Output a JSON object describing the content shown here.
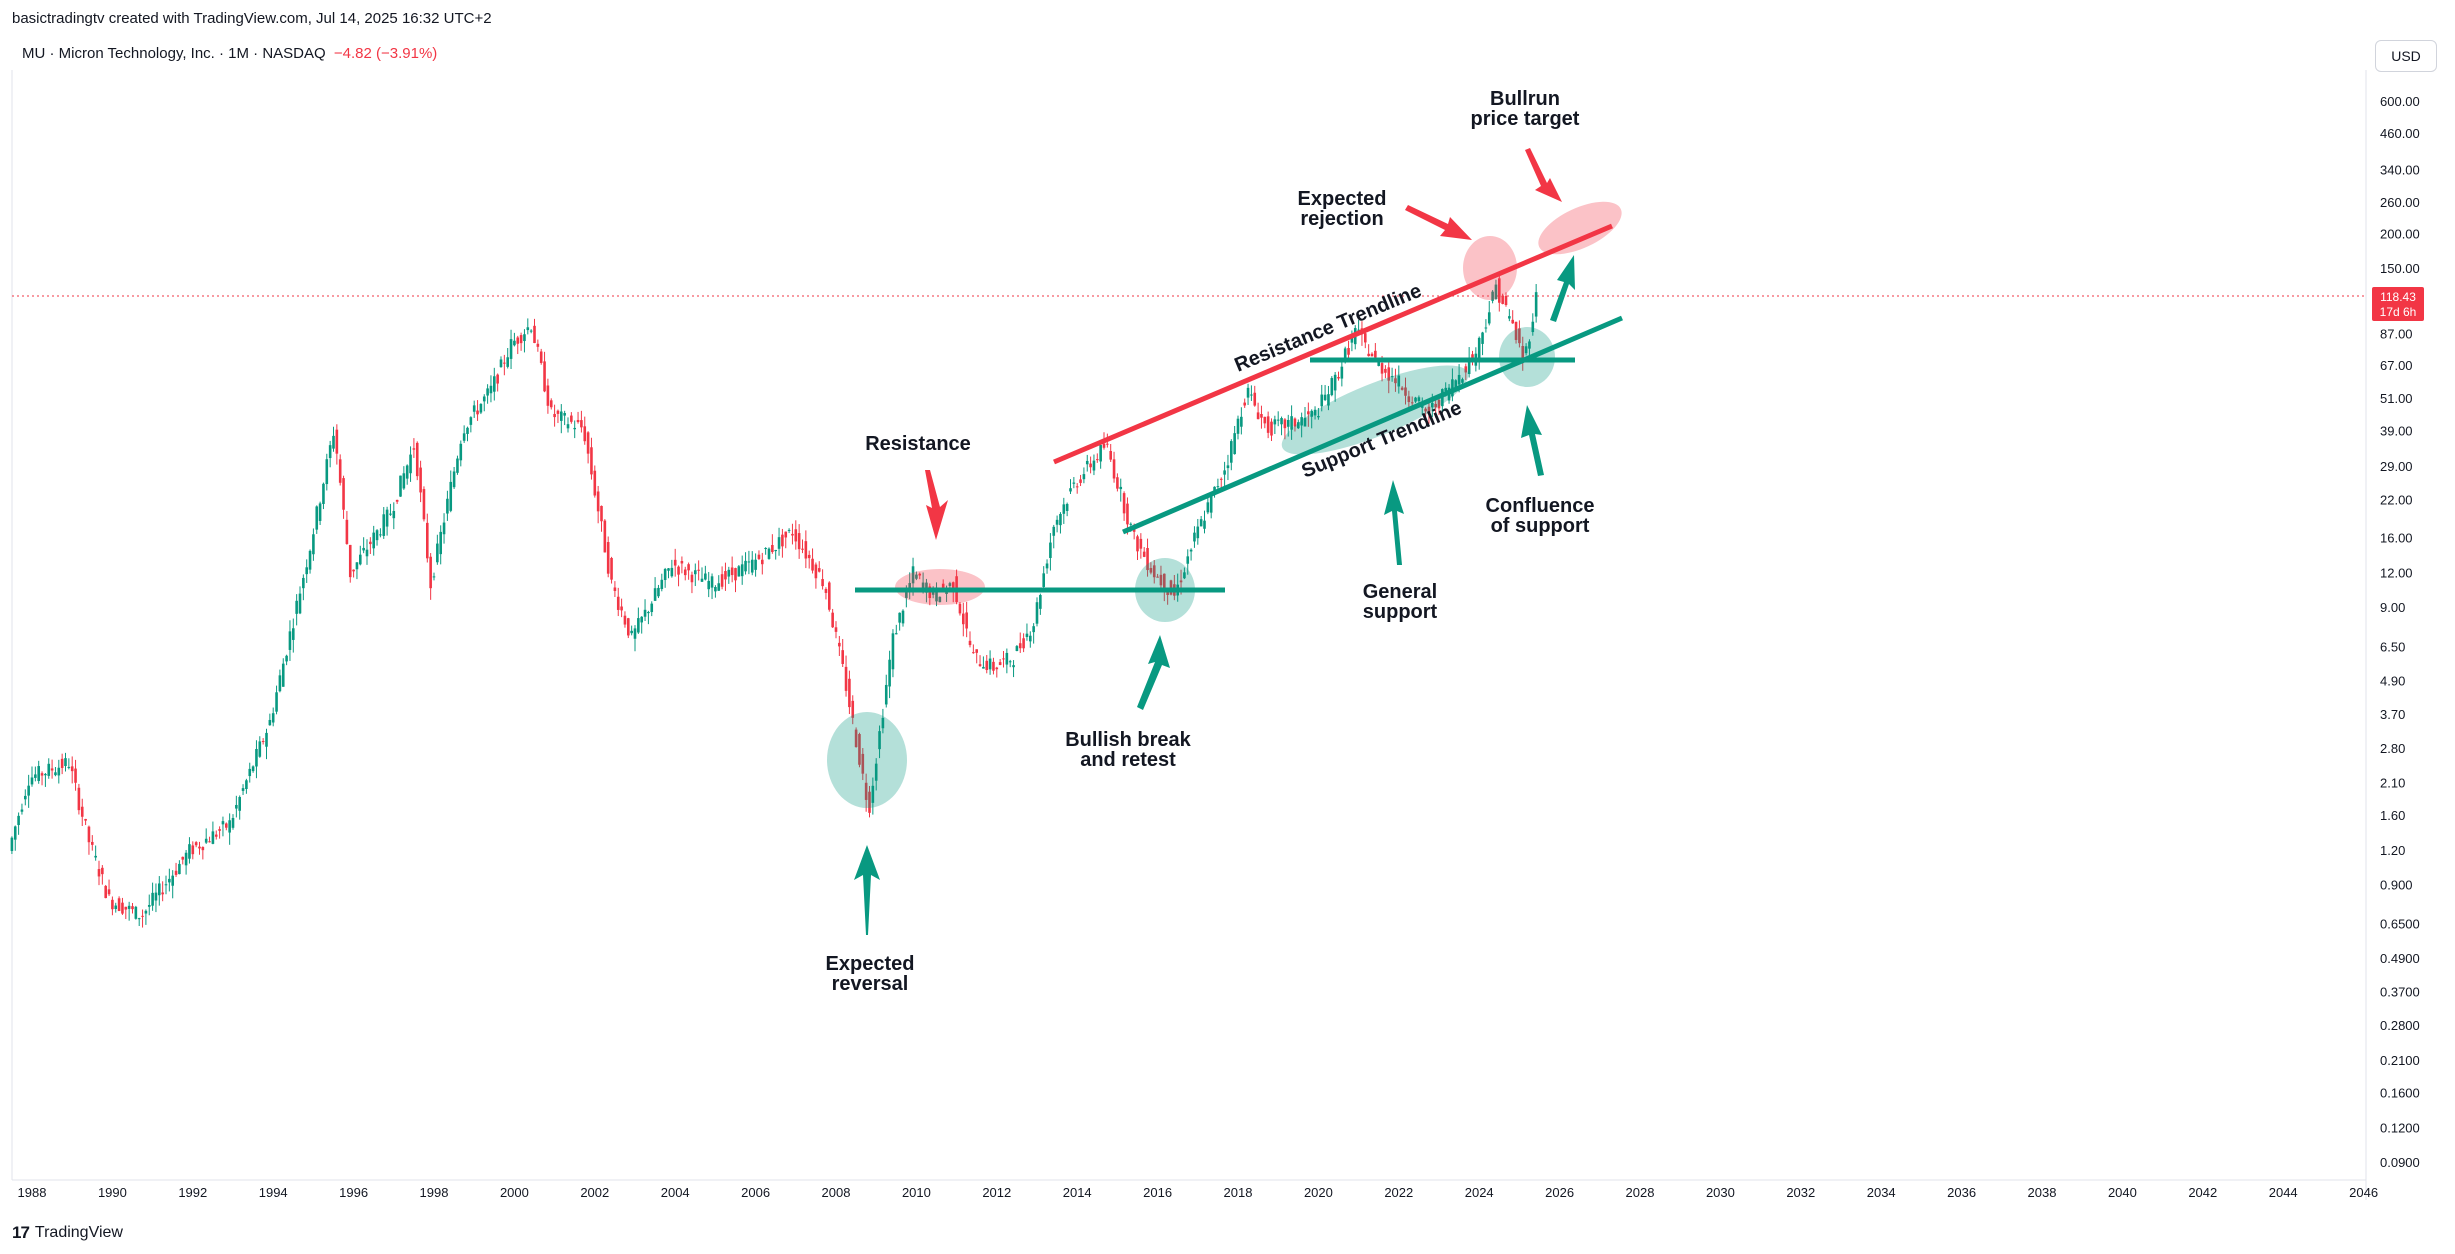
{
  "header": {
    "attribution": "basictradingtv created with TradingView.com, Jul 14, 2025 16:32 UTC+2"
  },
  "legend": {
    "symbol": "MU · Micron Technology, Inc. · 1M · NASDAQ",
    "change": "−4.82 (−3.91%)"
  },
  "currency_button": "USD",
  "price_label": {
    "price": "118.43",
    "countdown": "17d 6h"
  },
  "footer": {
    "brand": "TradingView"
  },
  "colors": {
    "up": "#089981",
    "down": "#f23645",
    "resistance": "#f23645",
    "support": "#089981",
    "arrow_red": "#f23645",
    "arrow_green": "#089981"
  },
  "chart_data": {
    "type": "line",
    "title": "",
    "scale": "log",
    "series": [
      {
        "name": "",
        "x": [
          "1987.5",
          "1988",
          "1989",
          "1989.5",
          "1990",
          "1990.8",
          "1992",
          "1993",
          "1994",
          "1995",
          "1995.6",
          "1996",
          "1997",
          "1997.6",
          "1998",
          "1998.8",
          "1999.5",
          "2000",
          "2000.5",
          "2001",
          "2001.8",
          "2002.5",
          "2003",
          "2004",
          "2005",
          "2006",
          "2007",
          "2007.8",
          "2008.3",
          "2008.9",
          "2009.5",
          "2010",
          "2010.5",
          "2011",
          "2011.5",
          "2012",
          "2012.5",
          "2013",
          "2013.5",
          "2014",
          "2014.8",
          "2015.5",
          "2016",
          "2016.5",
          "2017",
          "2017.8",
          "2018.3",
          "2018.8",
          "2019.5",
          "2020",
          "2020.5",
          "2021",
          "2021.5",
          "2022",
          "2022.8",
          "2023.5",
          "2024",
          "2024.5",
          "2024.9",
          "2025.2",
          "2025.5"
        ],
        "values": [
          1.2,
          2.2,
          2.5,
          1.3,
          0.8,
          0.7,
          1.2,
          1.5,
          3.5,
          15,
          40,
          12,
          20,
          35,
          11,
          40,
          55,
          80,
          95,
          45,
          40,
          11,
          7,
          13,
          11,
          13,
          17,
          11,
          5,
          1.7,
          7,
          12,
          10,
          11,
          6,
          5.5,
          6,
          8,
          18,
          25,
          35,
          16,
          12,
          10,
          16,
          30,
          55,
          40,
          42,
          45,
          60,
          90,
          70,
          60,
          45,
          60,
          75,
          130,
          95,
          70,
          118.43
        ]
      }
    ],
    "xlabel": "",
    "ylabel": "",
    "x_ticks": [
      "1988",
      "1990",
      "1992",
      "1994",
      "1996",
      "1998",
      "2000",
      "2002",
      "2004",
      "2006",
      "2008",
      "2010",
      "2012",
      "2014",
      "2016",
      "2018",
      "2020",
      "2022",
      "2024",
      "2026",
      "2028",
      "2030",
      "2032",
      "2034",
      "2036",
      "2038",
      "2040",
      "2042",
      "2044",
      "2046"
    ],
    "y_ticks": [
      "600.00",
      "460.00",
      "340.00",
      "260.00",
      "200.00",
      "150.00",
      "87.00",
      "67.00",
      "51.00",
      "39.00",
      "29.00",
      "22.00",
      "16.00",
      "12.00",
      "9.00",
      "6.50",
      "4.90",
      "3.70",
      "2.80",
      "2.10",
      "1.60",
      "1.20",
      "0.900",
      "0.6500",
      "0.4900",
      "0.3700",
      "0.2800",
      "0.2100",
      "0.1600",
      "0.1200",
      "0.0900"
    ],
    "annotations": [
      {
        "text": "Bullrun\nprice target"
      },
      {
        "text": "Expected\nrejection"
      },
      {
        "text": "Resistance Trendline"
      },
      {
        "text": "Support Trendline"
      },
      {
        "text": "Resistance"
      },
      {
        "text": "Confluence\nof support"
      },
      {
        "text": "General\nsupport"
      },
      {
        "text": "Bullish break\nand retest"
      },
      {
        "text": "Expected\nreversal"
      }
    ],
    "grid": false
  }
}
